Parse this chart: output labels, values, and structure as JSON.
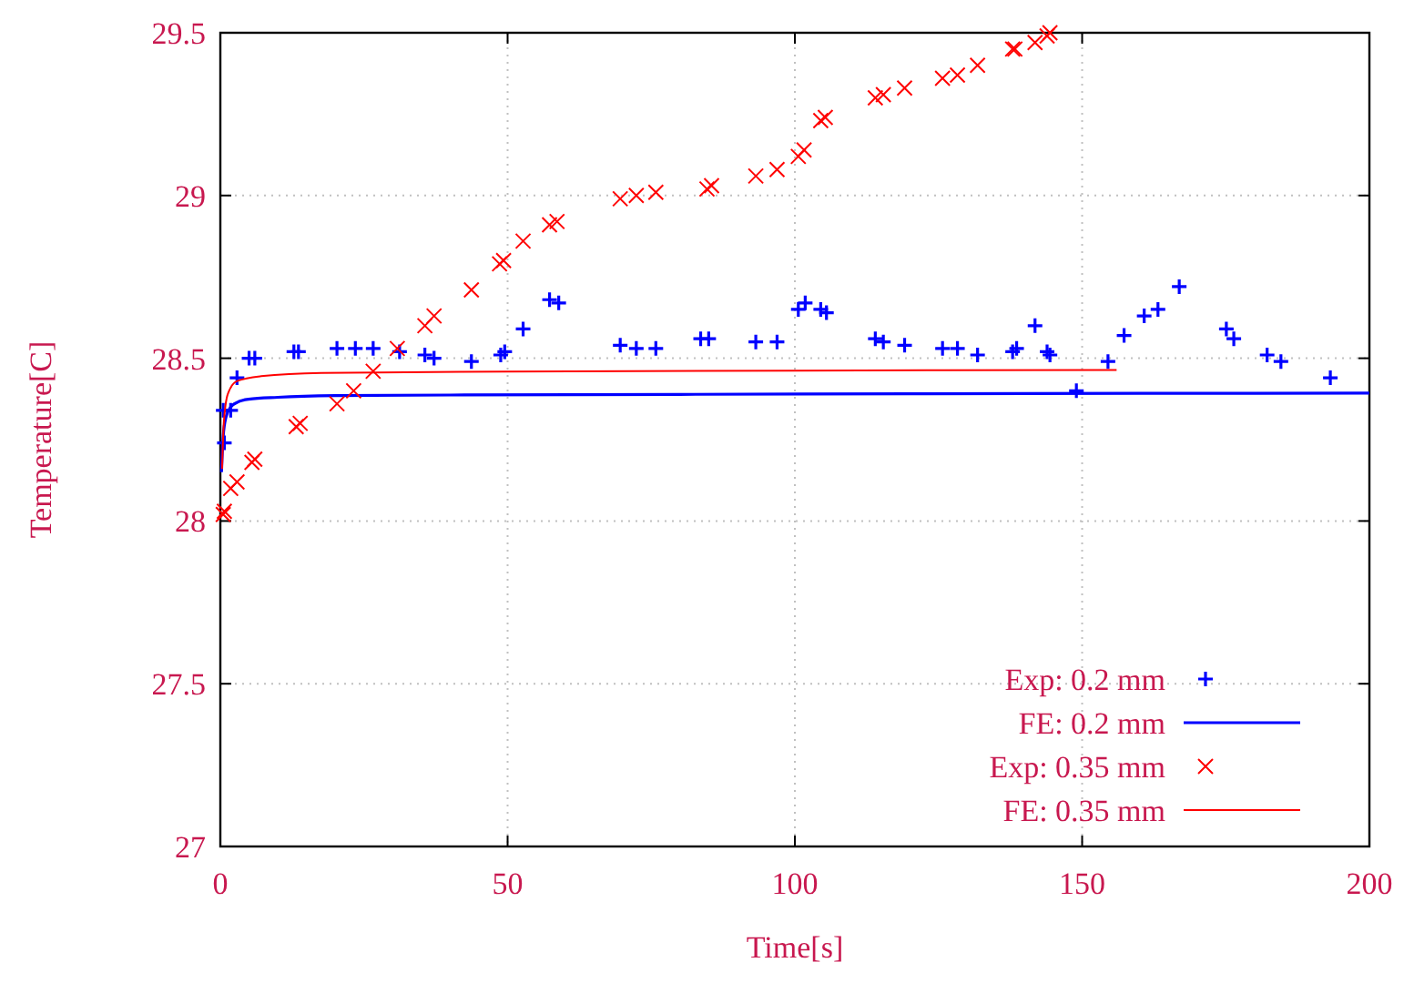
{
  "chart_data": {
    "type": "scatter",
    "xlabel": "Time[s]",
    "ylabel": "Temperature[C]",
    "xlim": [
      0,
      200
    ],
    "ylim": [
      27,
      29.5
    ],
    "xticks": [
      0,
      50,
      100,
      150,
      200
    ],
    "yticks": [
      27,
      27.5,
      28,
      28.5,
      29,
      29.5
    ],
    "grid": true,
    "legend": "bottom right",
    "series": [
      {
        "name": "Exp: 0.2 mm",
        "marker": "plus",
        "color": "#0000ff",
        "x": [
          0.5,
          1.8,
          0.7,
          2.9,
          5.0,
          6.0,
          12.8,
          13.6,
          20.3,
          23.5,
          26.6,
          31.2,
          35.6,
          37.2,
          43.7,
          48.8,
          49.5,
          52.7,
          57.3,
          58.9,
          69.6,
          72.4,
          75.8,
          83.6,
          85.0,
          93.2,
          96.9,
          100.6,
          101.8,
          104.5,
          105.5,
          114.0,
          115.4,
          119.1,
          125.7,
          128.3,
          131.8,
          137.9,
          138.6,
          141.8,
          143.9,
          144.4,
          149.0,
          154.5,
          157.3,
          160.8,
          163.2,
          166.9,
          175.1,
          176.4,
          182.2,
          184.6,
          193.2
        ],
        "values": [
          28.34,
          28.34,
          28.24,
          28.44,
          28.5,
          28.5,
          28.52,
          28.52,
          28.53,
          28.53,
          28.53,
          28.52,
          28.51,
          28.5,
          28.49,
          28.51,
          28.52,
          28.59,
          28.68,
          28.67,
          28.54,
          28.53,
          28.53,
          28.56,
          28.56,
          28.55,
          28.55,
          28.65,
          28.67,
          28.65,
          28.64,
          28.56,
          28.55,
          28.54,
          28.53,
          28.53,
          28.51,
          28.52,
          28.53,
          28.6,
          28.52,
          28.51,
          28.4,
          28.49,
          28.57,
          28.63,
          28.65,
          28.72,
          28.59,
          28.56,
          28.51,
          28.49,
          28.44
        ]
      },
      {
        "name": "FE: 0.2 mm",
        "type": "line",
        "color": "#0000ff",
        "x": [
          0.2,
          0.5,
          1,
          1.8,
          3,
          4.9,
          10,
          20,
          40,
          80,
          120,
          160,
          200
        ],
        "values": [
          28.15,
          28.26,
          28.32,
          28.35,
          28.365,
          28.374,
          28.38,
          28.385,
          28.387,
          28.389,
          28.391,
          28.392,
          28.393
        ]
      },
      {
        "name": "Exp: 0.35 mm",
        "marker": "cross",
        "color": "#ff0000",
        "x": [
          0.5,
          0.7,
          1.8,
          2.9,
          5.5,
          6.0,
          13.2,
          13.9,
          20.3,
          23.2,
          26.6,
          30.8,
          35.6,
          37.2,
          43.7,
          48.6,
          49.3,
          52.7,
          57.3,
          58.6,
          69.6,
          72.4,
          75.8,
          84.7,
          85.5,
          93.2,
          96.9,
          100.6,
          101.6,
          104.5,
          105.3,
          114.0,
          115.4,
          119.1,
          125.7,
          128.3,
          131.8,
          137.9,
          138.3,
          141.8,
          143.9,
          144.4
        ],
        "values": [
          28.02,
          28.03,
          28.1,
          28.12,
          28.18,
          28.19,
          28.29,
          28.3,
          28.36,
          28.4,
          28.46,
          28.53,
          28.6,
          28.63,
          28.71,
          28.79,
          28.8,
          28.86,
          28.91,
          28.92,
          28.99,
          29.0,
          29.01,
          29.02,
          29.03,
          29.06,
          29.08,
          29.12,
          29.14,
          29.23,
          29.24,
          29.3,
          29.31,
          29.33,
          29.36,
          29.37,
          29.4,
          29.45,
          29.45,
          29.47,
          29.49,
          29.5
        ]
      },
      {
        "name": "FE: 0.35 mm",
        "type": "line",
        "color": "#ff0000",
        "x": [
          0.3,
          0.6,
          1.3,
          2.9,
          7.1,
          17.6,
          50,
          100,
          156
        ],
        "values": [
          28.16,
          28.3,
          28.39,
          28.43,
          28.445,
          28.455,
          28.459,
          28.462,
          28.464
        ]
      }
    ]
  }
}
